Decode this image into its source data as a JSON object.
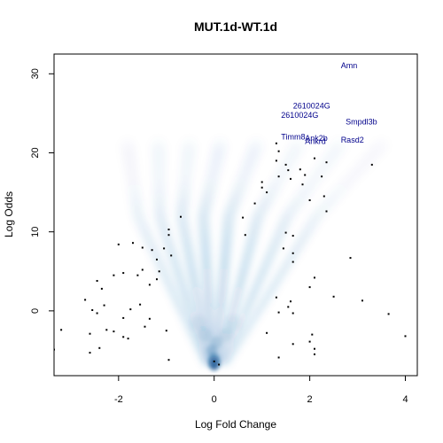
{
  "chart_data": {
    "type": "scatter",
    "title": "MUT.1d-WT.1d",
    "xlabel": "Log Fold Change",
    "ylabel": "Log Odds",
    "xlim": [
      -3.35,
      4.25
    ],
    "ylim": [
      -8.2,
      32.5
    ],
    "xticks": [
      -2,
      0,
      2,
      4
    ],
    "yticks": [
      0,
      10,
      20,
      30
    ],
    "colors": {
      "density": "#1f6fb4",
      "points": "#000000",
      "labels": "#00008b",
      "frame": "#000000"
    },
    "labels": [
      {
        "text": "Amn",
        "x": 2.65,
        "y": 30.7
      },
      {
        "text": "2610024G",
        "x": 1.65,
        "y": 25.6
      },
      {
        "text": "2610024G",
        "x": 1.4,
        "y": 24.4
      },
      {
        "text": "Smpdl3b",
        "x": 2.75,
        "y": 23.6
      },
      {
        "text": "Timm8",
        "x": 1.4,
        "y": 21.7
      },
      {
        "text": "Ank2b",
        "x": 1.9,
        "y": 21.5
      },
      {
        "text": "Ankrd",
        "x": 1.9,
        "y": 21.1
      },
      {
        "text": "Rasd2",
        "x": 2.65,
        "y": 21.3
      }
    ],
    "points": [
      [
        1.3,
        21.2
      ],
      [
        1.35,
        20.2
      ],
      [
        1.3,
        19.0
      ],
      [
        1.5,
        18.5
      ],
      [
        1.55,
        17.8
      ],
      [
        1.8,
        17.9
      ],
      [
        1.9,
        17.2
      ],
      [
        2.1,
        19.3
      ],
      [
        2.35,
        18.8
      ],
      [
        3.3,
        18.5
      ],
      [
        1.35,
        17.0
      ],
      [
        1.6,
        16.7
      ],
      [
        1.0,
        16.3
      ],
      [
        1.0,
        15.6
      ],
      [
        1.85,
        16.0
      ],
      [
        2.25,
        17.0
      ],
      [
        1.1,
        15.0
      ],
      [
        2.3,
        14.5
      ],
      [
        2.0,
        14.0
      ],
      [
        0.85,
        13.6
      ],
      [
        2.35,
        12.6
      ],
      [
        0.6,
        11.8
      ],
      [
        -0.7,
        11.9
      ],
      [
        -0.95,
        10.3
      ],
      [
        -0.95,
        9.6
      ],
      [
        0.65,
        9.6
      ],
      [
        1.5,
        9.9
      ],
      [
        1.65,
        9.5
      ],
      [
        -2.0,
        8.4
      ],
      [
        -1.7,
        8.6
      ],
      [
        -1.5,
        8.0
      ],
      [
        -1.3,
        7.7
      ],
      [
        -1.05,
        7.9
      ],
      [
        1.45,
        7.9
      ],
      [
        1.65,
        7.3
      ],
      [
        -1.2,
        6.5
      ],
      [
        -0.9,
        7.0
      ],
      [
        2.85,
        6.7
      ],
      [
        1.65,
        6.2
      ],
      [
        -1.5,
        5.2
      ],
      [
        -1.9,
        4.8
      ],
      [
        -2.1,
        4.5
      ],
      [
        -1.6,
        4.5
      ],
      [
        -1.15,
        5.0
      ],
      [
        -1.2,
        4.0
      ],
      [
        2.1,
        4.2
      ],
      [
        -2.45,
        3.8
      ],
      [
        -2.35,
        2.8
      ],
      [
        -1.35,
        3.3
      ],
      [
        2.0,
        3.0
      ],
      [
        1.3,
        1.7
      ],
      [
        1.6,
        1.2
      ],
      [
        2.5,
        1.8
      ],
      [
        -2.7,
        1.4
      ],
      [
        -1.55,
        0.8
      ],
      [
        -2.3,
        0.7
      ],
      [
        3.1,
        1.3
      ],
      [
        1.55,
        0.5
      ],
      [
        1.65,
        -0.3
      ],
      [
        -2.55,
        0.1
      ],
      [
        -1.75,
        0.2
      ],
      [
        1.35,
        -0.2
      ],
      [
        -2.45,
        -0.3
      ],
      [
        -1.9,
        -0.9
      ],
      [
        -1.35,
        -1.0
      ],
      [
        3.65,
        -0.4
      ],
      [
        -1.45,
        -2.0
      ],
      [
        -2.25,
        -2.4
      ],
      [
        -2.1,
        -2.6
      ],
      [
        -3.2,
        -2.4
      ],
      [
        -1.0,
        -2.5
      ],
      [
        1.1,
        -2.8
      ],
      [
        2.05,
        -3.0
      ],
      [
        -2.6,
        -2.9
      ],
      [
        -1.9,
        -3.3
      ],
      [
        -1.8,
        -3.5
      ],
      [
        4.0,
        -3.2
      ],
      [
        2.0,
        -3.9
      ],
      [
        1.65,
        -4.2
      ],
      [
        -2.4,
        -4.7
      ],
      [
        -3.35,
        -4.9
      ],
      [
        2.1,
        -4.8
      ],
      [
        -2.6,
        -5.3
      ],
      [
        2.1,
        -5.5
      ],
      [
        1.35,
        -5.9
      ],
      [
        -0.95,
        -6.2
      ],
      [
        0.0,
        -6.4
      ],
      [
        0.1,
        -6.8
      ]
    ]
  }
}
